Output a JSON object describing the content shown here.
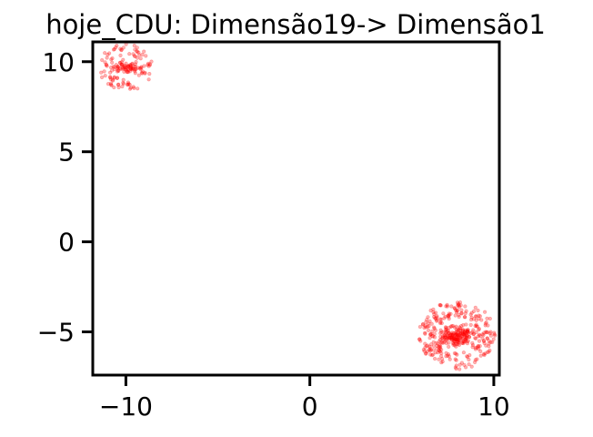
{
  "chart_data": {
    "type": "scatter",
    "title": "hoje_CDU: Dimensão19-> Dimensão1",
    "xlabel": "",
    "ylabel": "",
    "xlim": [
      -11.8,
      10.3
    ],
    "ylim": [
      -7.4,
      11.1
    ],
    "x_ticks": [
      -10,
      0,
      10
    ],
    "x_tick_labels": [
      "−10",
      "0",
      "10"
    ],
    "y_ticks": [
      -5,
      0,
      5,
      10
    ],
    "y_tick_labels": [
      "−5",
      "0",
      "5",
      "10"
    ],
    "grid": false,
    "legend": false,
    "marker_color": "#ff0000",
    "marker_alpha": 0.3,
    "clusters": [
      {
        "center": [
          -10.0,
          9.7
        ],
        "core_radius": 0.7,
        "ring_radius": 1.4,
        "count": 160
      },
      {
        "center": [
          8.0,
          -5.2
        ],
        "core_radius": 1.0,
        "ring_radius": 2.0,
        "count": 420
      }
    ]
  }
}
